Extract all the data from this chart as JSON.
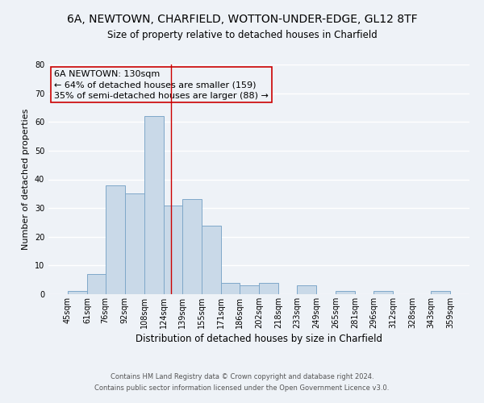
{
  "title": "6A, NEWTOWN, CHARFIELD, WOTTON-UNDER-EDGE, GL12 8TF",
  "subtitle": "Size of property relative to detached houses in Charfield",
  "xlabel": "Distribution of detached houses by size in Charfield",
  "ylabel": "Number of detached properties",
  "bar_left_edges": [
    45,
    61,
    76,
    92,
    108,
    124,
    139,
    155,
    171,
    186,
    202,
    218,
    233,
    249,
    265,
    281,
    296,
    312,
    328,
    343
  ],
  "bar_widths": [
    16,
    15,
    16,
    16,
    16,
    15,
    16,
    16,
    15,
    16,
    16,
    15,
    16,
    16,
    16,
    15,
    16,
    16,
    15,
    16
  ],
  "bar_heights": [
    1,
    7,
    38,
    35,
    62,
    31,
    33,
    24,
    4,
    3,
    4,
    0,
    3,
    0,
    1,
    0,
    1,
    0,
    0,
    1
  ],
  "tick_labels": [
    "45sqm",
    "61sqm",
    "76sqm",
    "92sqm",
    "108sqm",
    "124sqm",
    "139sqm",
    "155sqm",
    "171sqm",
    "186sqm",
    "202sqm",
    "218sqm",
    "233sqm",
    "249sqm",
    "265sqm",
    "281sqm",
    "296sqm",
    "312sqm",
    "328sqm",
    "343sqm",
    "359sqm"
  ],
  "bar_color": "#c9d9e8",
  "bar_edge_color": "#7fa8c9",
  "background_color": "#eef2f7",
  "grid_color": "#ffffff",
  "vline_x": 130,
  "vline_color": "#cc0000",
  "annotation_line1": "6A NEWTOWN: 130sqm",
  "annotation_line2": "← 64% of detached houses are smaller (159)",
  "annotation_line3": "35% of semi-detached houses are larger (88) →",
  "annotation_box_color": "#cc0000",
  "ylim": [
    0,
    80
  ],
  "yticks": [
    0,
    10,
    20,
    30,
    40,
    50,
    60,
    70,
    80
  ],
  "footer_line1": "Contains HM Land Registry data © Crown copyright and database right 2024.",
  "footer_line2": "Contains public sector information licensed under the Open Government Licence v3.0.",
  "title_fontsize": 10,
  "subtitle_fontsize": 8.5,
  "ylabel_fontsize": 8,
  "xlabel_fontsize": 8.5,
  "tick_fontsize": 7,
  "annotation_fontsize": 8,
  "footer_fontsize": 6
}
